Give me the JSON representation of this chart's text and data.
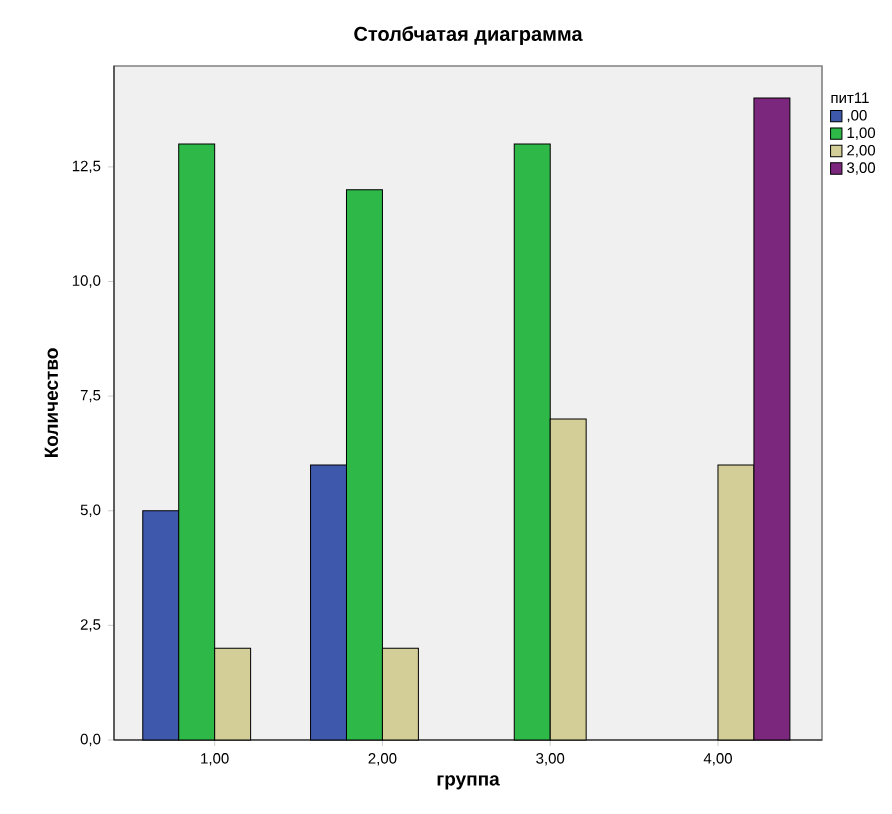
{
  "chart_data": {
    "type": "bar",
    "title": "Столбчатая диаграмма",
    "xlabel": "группа",
    "ylabel": "Количество",
    "legend_title": "пит11",
    "categories": [
      "1,00",
      "2,00",
      "3,00",
      "4,00"
    ],
    "series": [
      {
        "name": ",00",
        "color": "#3e58ac",
        "values": [
          5,
          6,
          null,
          null
        ]
      },
      {
        "name": "1,00",
        "color": "#2eb848",
        "values": [
          13,
          12,
          13,
          null
        ]
      },
      {
        "name": "2,00",
        "color": "#d3ce97",
        "values": [
          2,
          2,
          7,
          6
        ]
      },
      {
        "name": "3,00",
        "color": "#7b277d",
        "values": [
          null,
          null,
          null,
          14
        ]
      }
    ],
    "ylim": [
      0,
      14.7
    ],
    "yticks": [
      {
        "value": 0,
        "label": "0,0"
      },
      {
        "value": 2.5,
        "label": "2,5"
      },
      {
        "value": 5,
        "label": "5,0"
      },
      {
        "value": 7.5,
        "label": "7,5"
      },
      {
        "value": 10,
        "label": "10,0"
      },
      {
        "value": 12.5,
        "label": "12,5"
      }
    ],
    "grid": false,
    "legend": "top right"
  }
}
